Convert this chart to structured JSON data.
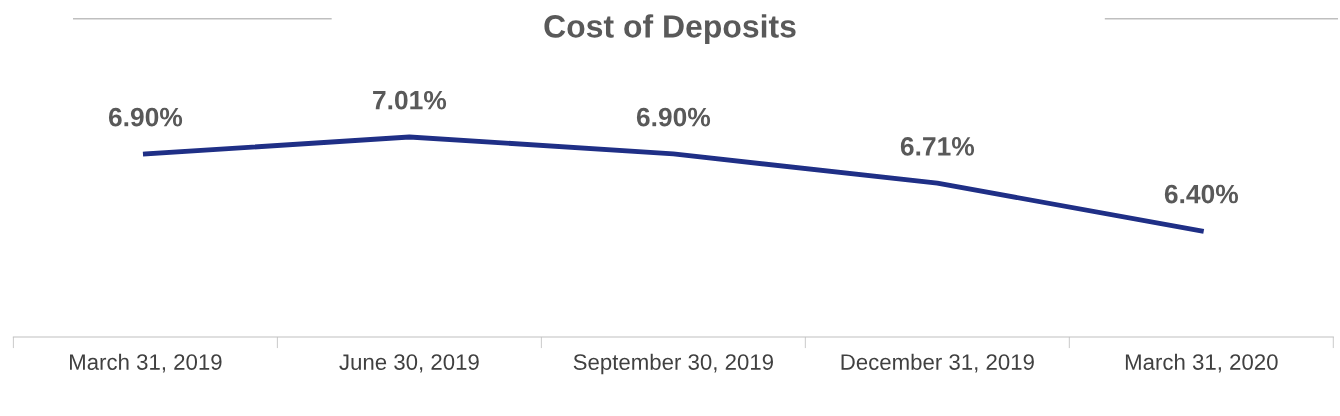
{
  "chart_data": {
    "type": "line",
    "title": "Cost of Deposits",
    "categories": [
      "March 31, 2019",
      "June 30, 2019",
      "September 30, 2019",
      "December 31, 2019",
      "March 31, 2020"
    ],
    "series": [
      {
        "color": "#1f2f86",
        "values": [
          6.9,
          7.01,
          6.9,
          6.71,
          6.4
        ],
        "value_labels": [
          "6.90%",
          "7.01%",
          "6.90%",
          "6.71%",
          "6.40%"
        ]
      }
    ],
    "grid": false,
    "legend": false,
    "marker": "none",
    "line_style": "solid",
    "tick_labels": "x"
  }
}
